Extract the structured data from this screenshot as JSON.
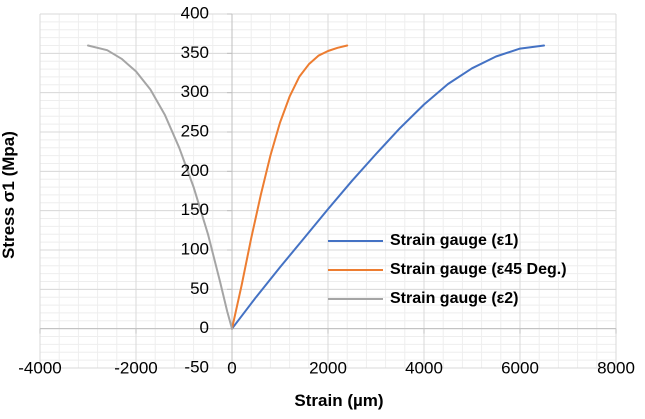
{
  "chart_data": {
    "type": "line",
    "title": "",
    "xlabel": "Strain (µm)",
    "ylabel": "Stress σ1 (Mpa)",
    "xlim": [
      -4000,
      8000
    ],
    "ylim": [
      -50,
      400
    ],
    "x_ticks": [
      -4000,
      -2000,
      0,
      2000,
      4000,
      6000,
      8000
    ],
    "y_ticks": [
      -50,
      0,
      50,
      100,
      150,
      200,
      250,
      300,
      350,
      400
    ],
    "x_tick_labels": [
      "-4000",
      "-2000",
      "0",
      "2000",
      "4000",
      "6000",
      "8000"
    ],
    "y_tick_labels": [
      "-50",
      "0",
      "50",
      "100",
      "150",
      "200",
      "250",
      "300",
      "350",
      "400"
    ],
    "grid": true,
    "minor_grid": true,
    "legend_position": "bottom-right",
    "series": [
      {
        "name": "Strain gauge (ε1)",
        "color": "#4472C4",
        "points": [
          [
            0,
            0
          ],
          [
            500,
            40
          ],
          [
            1000,
            78
          ],
          [
            1500,
            115
          ],
          [
            2000,
            152
          ],
          [
            2500,
            188
          ],
          [
            3000,
            222
          ],
          [
            3500,
            255
          ],
          [
            4000,
            285
          ],
          [
            4500,
            311
          ],
          [
            5000,
            331
          ],
          [
            5500,
            346
          ],
          [
            6000,
            356
          ],
          [
            6500,
            360
          ]
        ]
      },
      {
        "name": "Strain gauge (ε45 Deg.)",
        "color": "#ED7D31",
        "points": [
          [
            0,
            0
          ],
          [
            200,
            55
          ],
          [
            400,
            115
          ],
          [
            600,
            170
          ],
          [
            800,
            220
          ],
          [
            1000,
            262
          ],
          [
            1200,
            295
          ],
          [
            1400,
            320
          ],
          [
            1600,
            336
          ],
          [
            1800,
            347
          ],
          [
            2000,
            353
          ],
          [
            2200,
            357
          ],
          [
            2400,
            360
          ]
        ]
      },
      {
        "name": "Strain gauge (ε2)",
        "color": "#A5A5A5",
        "points": [
          [
            0,
            0
          ],
          [
            -100,
            22
          ],
          [
            -250,
            60
          ],
          [
            -500,
            120
          ],
          [
            -800,
            180
          ],
          [
            -1100,
            230
          ],
          [
            -1400,
            272
          ],
          [
            -1700,
            304
          ],
          [
            -2000,
            327
          ],
          [
            -2300,
            343
          ],
          [
            -2600,
            354
          ],
          [
            -3000,
            360
          ]
        ]
      }
    ]
  }
}
